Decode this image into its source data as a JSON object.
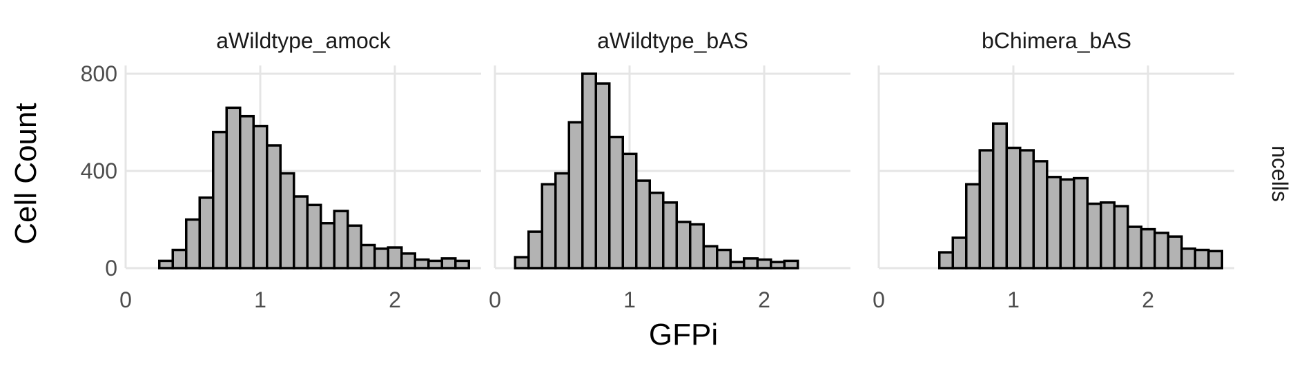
{
  "chart_data": {
    "type": "bar",
    "subtype": "faceted-histogram",
    "xlabel": "GFPi",
    "ylabel": "Cell Count",
    "strip_label": "ncells",
    "xlim": [
      0,
      2.6
    ],
    "ylim": [
      0,
      820
    ],
    "x_ticks": [
      0,
      1,
      2
    ],
    "y_ticks": [
      0,
      400,
      800
    ],
    "grid": true,
    "bar_fill": "#b3b3b3",
    "bar_outline": "#000000",
    "bin_width": 0.1,
    "facets": [
      {
        "title": "aWildtype_amock",
        "bins": [
          {
            "x": 0.3,
            "count": 30
          },
          {
            "x": 0.4,
            "count": 75
          },
          {
            "x": 0.5,
            "count": 200
          },
          {
            "x": 0.6,
            "count": 290
          },
          {
            "x": 0.7,
            "count": 560
          },
          {
            "x": 0.8,
            "count": 660
          },
          {
            "x": 0.9,
            "count": 625
          },
          {
            "x": 1.0,
            "count": 585
          },
          {
            "x": 1.1,
            "count": 505
          },
          {
            "x": 1.2,
            "count": 390
          },
          {
            "x": 1.3,
            "count": 295
          },
          {
            "x": 1.4,
            "count": 260
          },
          {
            "x": 1.5,
            "count": 185
          },
          {
            "x": 1.6,
            "count": 235
          },
          {
            "x": 1.7,
            "count": 175
          },
          {
            "x": 1.8,
            "count": 95
          },
          {
            "x": 1.9,
            "count": 80
          },
          {
            "x": 2.0,
            "count": 85
          },
          {
            "x": 2.1,
            "count": 60
          },
          {
            "x": 2.2,
            "count": 35
          },
          {
            "x": 2.3,
            "count": 30
          },
          {
            "x": 2.4,
            "count": 40
          },
          {
            "x": 2.5,
            "count": 30
          }
        ]
      },
      {
        "title": "aWildtype_bAS",
        "bins": [
          {
            "x": 0.2,
            "count": 45
          },
          {
            "x": 0.3,
            "count": 150
          },
          {
            "x": 0.4,
            "count": 345
          },
          {
            "x": 0.5,
            "count": 390
          },
          {
            "x": 0.6,
            "count": 600
          },
          {
            "x": 0.7,
            "count": 800
          },
          {
            "x": 0.8,
            "count": 760
          },
          {
            "x": 0.9,
            "count": 540
          },
          {
            "x": 1.0,
            "count": 470
          },
          {
            "x": 1.1,
            "count": 360
          },
          {
            "x": 1.2,
            "count": 310
          },
          {
            "x": 1.3,
            "count": 270
          },
          {
            "x": 1.4,
            "count": 190
          },
          {
            "x": 1.5,
            "count": 180
          },
          {
            "x": 1.6,
            "count": 90
          },
          {
            "x": 1.7,
            "count": 75
          },
          {
            "x": 1.8,
            "count": 25
          },
          {
            "x": 1.9,
            "count": 40
          },
          {
            "x": 2.0,
            "count": 35
          },
          {
            "x": 2.1,
            "count": 25
          },
          {
            "x": 2.2,
            "count": 30
          }
        ]
      },
      {
        "title": "bChimera_bAS",
        "bins": [
          {
            "x": 0.5,
            "count": 65
          },
          {
            "x": 0.6,
            "count": 125
          },
          {
            "x": 0.7,
            "count": 345
          },
          {
            "x": 0.8,
            "count": 485
          },
          {
            "x": 0.9,
            "count": 595
          },
          {
            "x": 1.0,
            "count": 495
          },
          {
            "x": 1.1,
            "count": 485
          },
          {
            "x": 1.2,
            "count": 440
          },
          {
            "x": 1.3,
            "count": 375
          },
          {
            "x": 1.4,
            "count": 365
          },
          {
            "x": 1.5,
            "count": 370
          },
          {
            "x": 1.6,
            "count": 265
          },
          {
            "x": 1.7,
            "count": 270
          },
          {
            "x": 1.8,
            "count": 255
          },
          {
            "x": 1.9,
            "count": 170
          },
          {
            "x": 2.0,
            "count": 160
          },
          {
            "x": 2.1,
            "count": 145
          },
          {
            "x": 2.2,
            "count": 130
          },
          {
            "x": 2.3,
            "count": 80
          },
          {
            "x": 2.4,
            "count": 75
          },
          {
            "x": 2.5,
            "count": 70
          }
        ]
      }
    ]
  }
}
